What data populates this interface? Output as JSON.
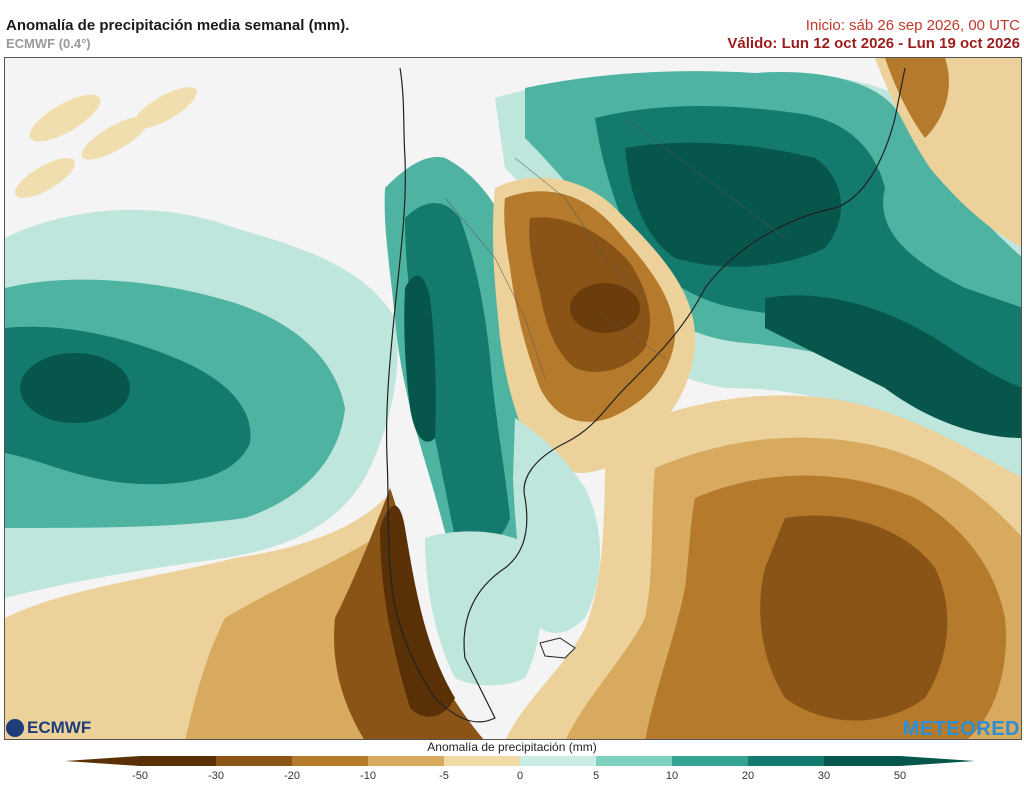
{
  "header": {
    "title": "Anomalía de precipitación media semanal (mm).",
    "model": "ECMWF (0.4°)",
    "init": "Inicio:  sáb 26 sep 2026, 00 UTC",
    "valid": "Válido: Lun 12 oct 2026 - Lun 19 oct 2026"
  },
  "colorbar": {
    "title": "Anomalía de precipitación (mm)",
    "ticks": [
      "-50",
      "-30",
      "-20",
      "-10",
      "-5",
      "0",
      "5",
      "10",
      "20",
      "30",
      "50"
    ],
    "colors": [
      "#5a3106",
      "#8a5417",
      "#b57a2c",
      "#d7aa5f",
      "#f1dca8",
      "#f5f5f5",
      "#c9ece3",
      "#7fd0bf",
      "#35a391",
      "#137a6d",
      "#07564c"
    ]
  },
  "logos": {
    "left": "ECMWF",
    "right": "METEORED"
  },
  "colors": {
    "dry_strong": "#6b3c0c",
    "dry_mid": "#b57a2c",
    "dry_light": "#ecd29a",
    "neutral": "#f4f4f4",
    "wet_light": "#bfe6dc",
    "wet_mid": "#4fb3a2",
    "wet_strong": "#0f6b5f"
  }
}
